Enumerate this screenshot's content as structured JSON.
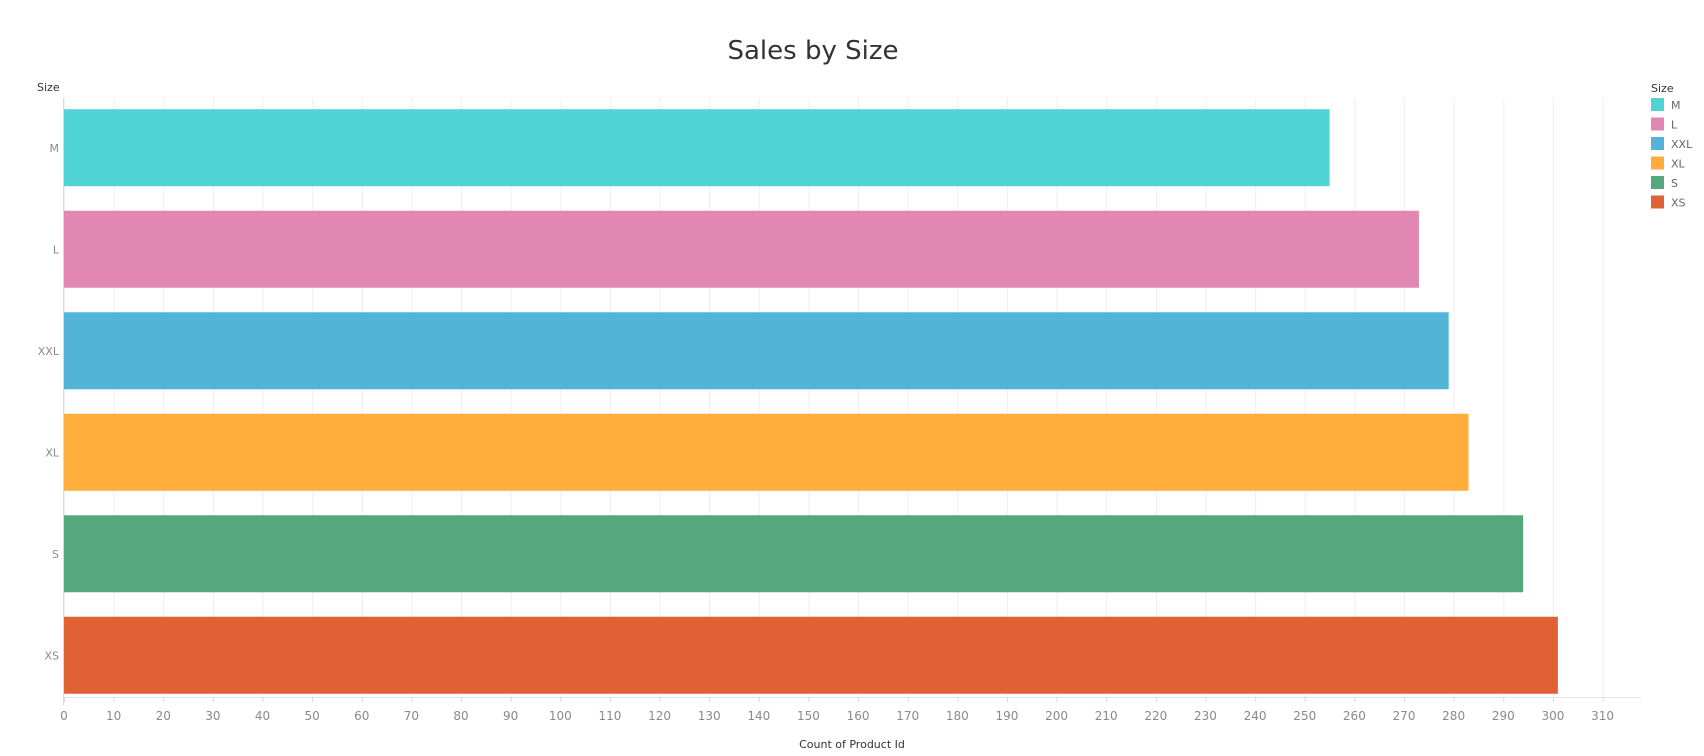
{
  "chart_data": {
    "type": "bar",
    "orientation": "horizontal",
    "title": "Sales by Size",
    "xlabel": "Count of Product Id",
    "ylabel": "Size",
    "categories": [
      "M",
      "L",
      "XXL",
      "XL",
      "S",
      "XS"
    ],
    "values": [
      255,
      273,
      279,
      283,
      294,
      301
    ],
    "colors": [
      "#4fd3d3",
      "#e287b1",
      "#52b5d8",
      "#ffae3b",
      "#54a87b",
      "#e06134"
    ],
    "xlim": [
      0,
      316
    ],
    "xticks": [
      0,
      10,
      20,
      30,
      40,
      50,
      60,
      70,
      80,
      90,
      100,
      110,
      120,
      130,
      140,
      150,
      160,
      170,
      180,
      190,
      200,
      210,
      220,
      230,
      240,
      250,
      260,
      270,
      280,
      290,
      300,
      310
    ],
    "grid": true,
    "legend": {
      "title": "Size",
      "placement": "top-right",
      "entries": [
        "M",
        "L",
        "XXL",
        "XL",
        "S",
        "XS"
      ]
    }
  }
}
